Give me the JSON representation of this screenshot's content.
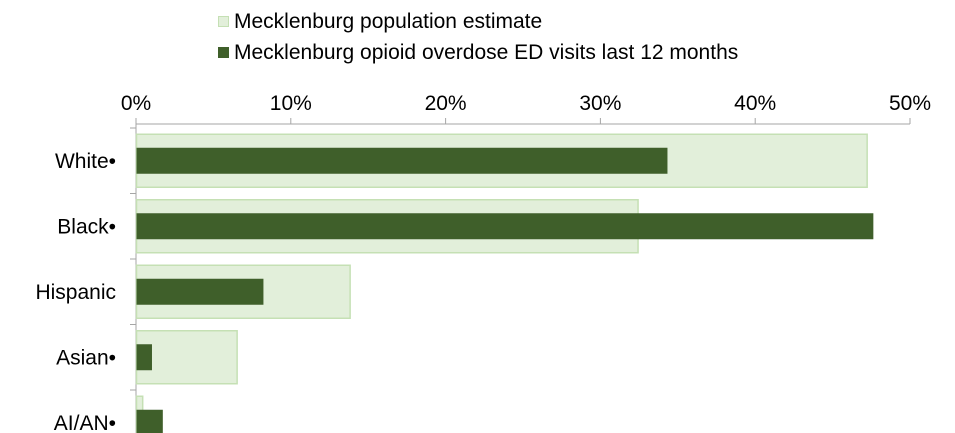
{
  "chart_data": {
    "type": "bar",
    "orientation": "horizontal",
    "categories": [
      "White•",
      "Black•",
      "Hispanic",
      "Asian•",
      "AI/AN•"
    ],
    "series": [
      {
        "name": "Mecklenburg population estimate",
        "values": [
          47.2,
          32.4,
          13.8,
          6.5,
          0.4
        ],
        "color": "#e2efda",
        "stroke": "#c5e0b4"
      },
      {
        "name": "Mecklenburg opioid overdose ED visits last 12 months",
        "values": [
          34.3,
          47.6,
          8.2,
          1.0,
          1.7
        ],
        "color": "#3f5f2a"
      }
    ],
    "xlim": [
      0,
      50
    ],
    "xticks": [
      0,
      10,
      20,
      30,
      40,
      50
    ],
    "tick_labels": [
      "0%",
      "10%",
      "20%",
      "30%",
      "40%",
      "50%"
    ],
    "axis_position": "top",
    "grid": false,
    "legend_position": "top"
  }
}
